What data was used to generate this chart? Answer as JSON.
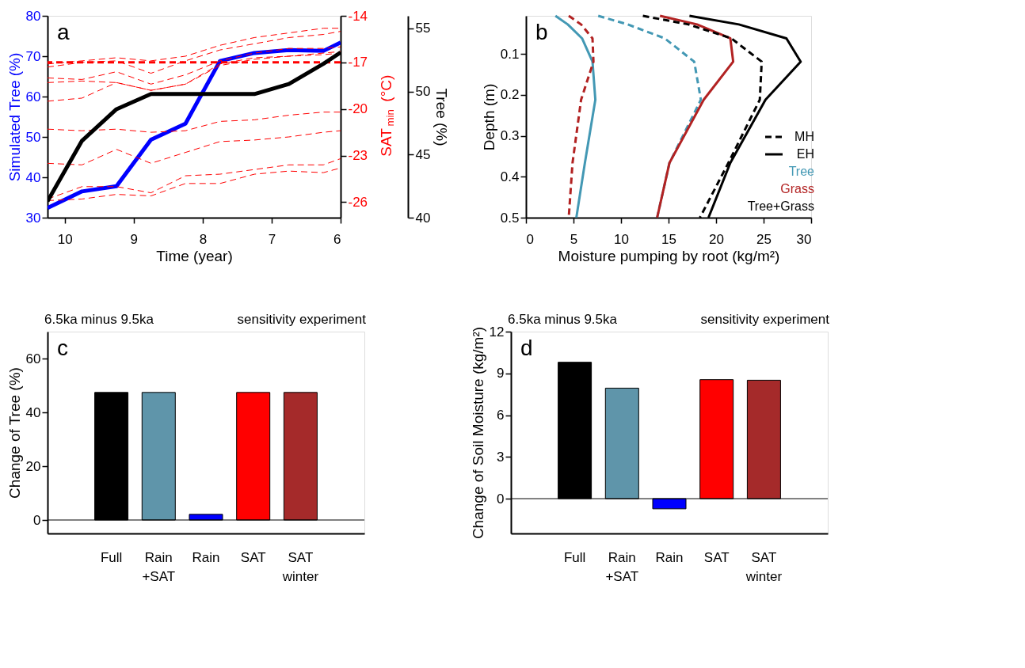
{
  "chart_data": [
    {
      "type": "line",
      "annotations": [
        "a"
      ],
      "xlabel": "Time (year)",
      "ylabel": "Simulated Tree (%)",
      "y2label": "SAT$_{min}$ (°C)",
      "y3label": "Tree (%)",
      "xlim": [
        10.25,
        6
      ],
      "xticks": [
        10,
        9,
        8,
        7,
        6
      ],
      "ylim": [
        30,
        80
      ],
      "yticks": [
        30,
        40,
        50,
        60,
        70,
        80
      ],
      "y2lim": [
        -27,
        -14
      ],
      "y2ticks": [
        -14,
        -17,
        -20,
        -23,
        -26
      ],
      "y3lim": [
        40,
        56
      ],
      "y3ticks": [
        40,
        45,
        50,
        55
      ],
      "x": [
        10.25,
        9.75,
        9.25,
        8.75,
        8.25,
        7.75,
        7.25,
        6.75,
        6.25,
        6.0
      ],
      "series": [
        {
          "color": "#0000ff",
          "line_style": "solid",
          "values": [
            32.4,
            36.5,
            37.8,
            49.3,
            53.3,
            68.8,
            70.8,
            71.5,
            71.3,
            73.4
          ]
        },
        {
          "color": "#ff0000",
          "line_style": "dashed",
          "axis": "y2",
          "values": [
            -17.3,
            -17.0,
            -16.9,
            -17.7,
            -16.9,
            -16.2,
            -15.8,
            -15.4,
            -15.2,
            -15.0
          ]
        },
        {
          "color": "#ff0000",
          "line_style": "dashed",
          "axis": "y2",
          "values": [
            -17.1,
            -16.9,
            -16.7,
            -16.9,
            -16.6,
            -15.9,
            -15.4,
            -15.1,
            -14.8,
            -14.8
          ]
        },
        {
          "color": "#ff0000",
          "line_style": "dashed",
          "axis": "y2",
          "values": [
            -18.0,
            -18.1,
            -17.6,
            -18.4,
            -17.8,
            -16.9,
            -16.4,
            -16.1,
            -16.1,
            -16.0
          ]
        },
        {
          "color": "#ff0000",
          "line_style": "dashed",
          "axis": "y2",
          "values": [
            -18.3,
            -18.2,
            -18.3,
            -18.8,
            -18.4,
            -17.1,
            -16.7,
            -16.6,
            -16.4,
            -16.3
          ]
        },
        {
          "color": "#ff0000",
          "line_style": "dashed",
          "axis": "y2",
          "values": [
            -19.5,
            -19.3,
            -18.3,
            -18.8,
            -18.4,
            -17.2,
            -16.8,
            -16.6,
            -16.5,
            -16.4
          ]
        },
        {
          "color": "#ff0000",
          "line_style": "dashed",
          "axis": "y2",
          "values": [
            -21.3,
            -21.4,
            -21.3,
            -21.5,
            -21.4,
            -20.8,
            -20.7,
            -20.4,
            -20.2,
            -20.2
          ]
        },
        {
          "color": "#ff0000",
          "line_style": "dashed",
          "axis": "y2",
          "values": [
            -23.5,
            -23.6,
            -22.6,
            -23.5,
            -22.8,
            -22.1,
            -22.0,
            -21.8,
            -21.5,
            -21.4
          ]
        },
        {
          "color": "#ff0000",
          "line_style": "dashed",
          "axis": "y2",
          "values": [
            -25.8,
            -25.0,
            -25.0,
            -25.4,
            -24.3,
            -24.2,
            -23.9,
            -23.6,
            -23.6,
            -23.2
          ]
        },
        {
          "color": "#ff0000",
          "line_style": "dashed",
          "axis": "y2",
          "values": [
            -25.9,
            -25.8,
            -25.5,
            -25.6,
            -24.8,
            -24.8,
            -24.2,
            -24.0,
            -24.1,
            -23.8
          ]
        },
        {
          "color": "#000000",
          "line_style": "solid",
          "axis": "y3",
          "values": [
            41.3,
            46.1,
            48.6,
            49.8,
            49.8,
            49.8,
            49.8,
            50.6,
            52.2,
            53.1
          ]
        }
      ],
      "ref_lines": [
        {
          "axis": "y2",
          "value": -17,
          "color": "#ff0000",
          "line_style": "dashed"
        }
      ]
    },
    {
      "type": "line",
      "orientation": "horizontal",
      "annotations": [
        "b",
        "MH",
        "EH",
        "Tree",
        "Grass",
        "Tree+Grass"
      ],
      "xlabel": "Moisture pumping by root (kg/m²)",
      "ylabel": "Depth (m)",
      "xlim": [
        0,
        30
      ],
      "xticks": [
        0,
        5,
        10,
        15,
        20,
        25,
        30
      ],
      "ylim": [
        0.5,
        0.007
      ],
      "yticks": [
        0.1,
        0.2,
        0.3,
        0.4,
        0.5
      ],
      "x": [
        0.007,
        0.028,
        0.062,
        0.119,
        0.212,
        0.366,
        0.5
      ],
      "series": [
        {
          "color": "#4398b4",
          "line_style": "dashed",
          "values": [
            7.6,
            10.7,
            14.6,
            17.7,
            18.4,
            15.1,
            13.8
          ]
        },
        {
          "color": "#4398b4",
          "line_style": "solid",
          "values": [
            3.1,
            4.4,
            5.9,
            7.0,
            7.3,
            6.2,
            5.3
          ]
        },
        {
          "color": "#b22222",
          "line_style": "dashed",
          "values": [
            4.5,
            5.8,
            7.0,
            7.1,
            5.8,
            4.9,
            4.5
          ]
        },
        {
          "color": "#b22222",
          "line_style": "solid",
          "values": [
            14.1,
            18.0,
            21.5,
            21.8,
            18.7,
            15.1,
            13.8
          ]
        },
        {
          "color": "#000000",
          "line_style": "dashed",
          "values": [
            12.3,
            17.1,
            21.6,
            24.8,
            24.6,
            21.3,
            18.3
          ]
        },
        {
          "color": "#000000",
          "line_style": "solid",
          "values": [
            17.2,
            22.4,
            27.4,
            28.9,
            25.2,
            21.5,
            19.2
          ]
        }
      ]
    },
    {
      "type": "bar",
      "title": "6.5ka minus 9.5ka",
      "subtitle": "sensitivity experiment",
      "annotations": [
        "c"
      ],
      "ylabel": "Change of Tree (%)",
      "categories": [
        "Full",
        "Rain\n+SAT",
        "Rain",
        "SAT",
        "SAT\nwinter"
      ],
      "values": [
        47.4,
        47.4,
        2.1,
        47.4,
        47.4
      ],
      "colors": [
        "#000000",
        "#5f95aa",
        "#0000ff",
        "#ff0000",
        "#a52a2a"
      ],
      "ylim": [
        -5,
        70
      ],
      "yticks": [
        0,
        20,
        40,
        60
      ],
      "ref_lines": [
        {
          "axis": "y",
          "value": 0,
          "color": "#000000"
        }
      ]
    },
    {
      "type": "bar",
      "title": "6.5ka minus 9.5ka",
      "subtitle": "sensitivity experiment",
      "annotations": [
        "d"
      ],
      "ylabel": "Change of Soil Moisture (kg/m²)",
      "categories": [
        "Full",
        "Rain\n+SAT",
        "Rain",
        "SAT",
        "SAT\nwinter"
      ],
      "values": [
        9.8,
        7.94,
        -0.73,
        8.55,
        8.51
      ],
      "colors": [
        "#000000",
        "#5f95aa",
        "#0000ff",
        "#ff0000",
        "#a52a2a"
      ],
      "ylim": [
        -2.5,
        12
      ],
      "yticks": [
        0,
        3,
        6,
        9,
        12
      ],
      "ref_lines": [
        {
          "axis": "y",
          "value": 0,
          "color": "#000000"
        }
      ]
    }
  ]
}
